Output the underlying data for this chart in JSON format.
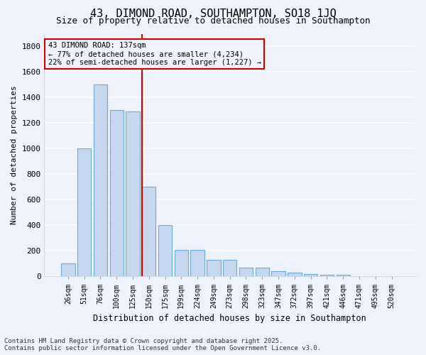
{
  "title_line1": "43, DIMOND ROAD, SOUTHAMPTON, SO18 1JQ",
  "title_line2": "Size of property relative to detached houses in Southampton",
  "xlabel": "Distribution of detached houses by size in Southampton",
  "ylabel": "Number of detached properties",
  "categories": [
    "26sqm",
    "51sqm",
    "76sqm",
    "100sqm",
    "125sqm",
    "150sqm",
    "175sqm",
    "199sqm",
    "224sqm",
    "249sqm",
    "273sqm",
    "298sqm",
    "323sqm",
    "347sqm",
    "372sqm",
    "397sqm",
    "421sqm",
    "446sqm",
    "471sqm",
    "495sqm",
    "520sqm"
  ],
  "values": [
    100,
    1000,
    1500,
    1300,
    1290,
    700,
    400,
    210,
    210,
    130,
    130,
    70,
    70,
    40,
    30,
    20,
    15,
    15,
    0,
    0,
    0
  ],
  "bar_color": "#c5d8f0",
  "bar_edge_color": "#6aaad4",
  "bar_width": 0.85,
  "vline_x": 4.55,
  "vline_color": "#cc0000",
  "annotation_text": "43 DIMOND ROAD: 137sqm\n← 77% of detached houses are smaller (4,234)\n22% of semi-detached houses are larger (1,227) →",
  "annotation_box_color": "#cc0000",
  "ylim": [
    0,
    1900
  ],
  "yticks": [
    0,
    200,
    400,
    600,
    800,
    1000,
    1200,
    1400,
    1600,
    1800
  ],
  "background_color": "#eef2fa",
  "grid_color": "#ffffff",
  "footer_line1": "Contains HM Land Registry data © Crown copyright and database right 2025.",
  "footer_line2": "Contains public sector information licensed under the Open Government Licence v3.0.",
  "title_fontsize": 11,
  "subtitle_fontsize": 9,
  "annotation_fontsize": 7.5,
  "footer_fontsize": 6.5
}
